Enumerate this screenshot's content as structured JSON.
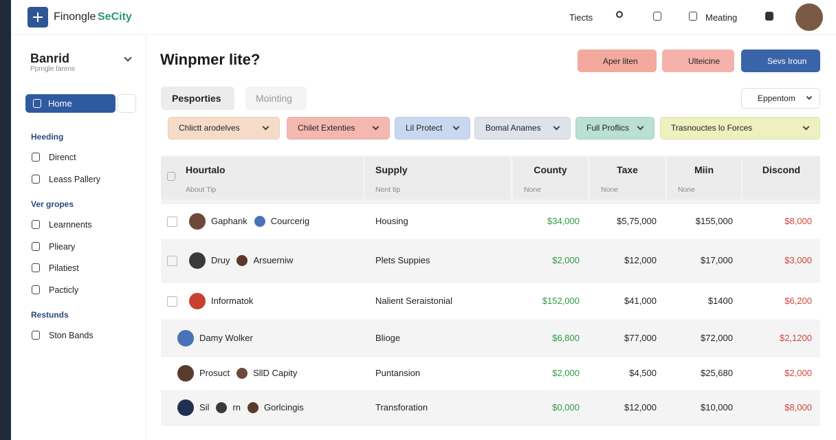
{
  "header": {
    "brand": [
      "Finongle",
      "SeCity"
    ],
    "nav": [
      "Tiects",
      "Meating"
    ]
  },
  "sidebar": {
    "title": "Banrid",
    "subtitle": "Pprngle farens",
    "active": "Home",
    "sections": [
      {
        "heading": "Heeding",
        "items": [
          "Direnct",
          "Leass Pallery"
        ]
      },
      {
        "heading": "Ver gropes",
        "items": [
          "Learnnents",
          "Plieary",
          "Pilatiest",
          "Pacticly"
        ]
      },
      {
        "heading": "Restunds",
        "items": [
          "Ston Bands"
        ]
      }
    ]
  },
  "main": {
    "title": "Winpmer lite?",
    "buttons": [
      "Aper liten",
      "Ulteicine",
      "Sevs Iroun"
    ],
    "tabs": [
      "Pesporties",
      "Mointing"
    ],
    "dropdown": "Eppentom",
    "filters": [
      "Chlictt arodelves",
      "Chilet Extenties",
      "Lil Protect",
      "Bomal Anames",
      "Full Proflics",
      "Trasnouctes lo Forces"
    ],
    "table": {
      "columns": [
        {
          "title": "Hourtalo",
          "sub": "About Tip"
        },
        {
          "title": "Supply",
          "sub": "Nent tip"
        },
        {
          "title": "Countу",
          "sub": "None"
        },
        {
          "title": "Taxe",
          "sub": "None"
        },
        {
          "title": "Miin",
          "sub": "None"
        },
        {
          "title": "Discond"
        }
      ],
      "rows": [
        {
          "names": [
            "Gaphank",
            "Courcerig"
          ],
          "cells": [
            "Housing",
            "$34,000",
            "$5,75,000",
            "$155,000",
            "$8,000"
          ]
        },
        {
          "names": [
            "Druy",
            "Arsuerniw"
          ],
          "cells": [
            "Plets Suppies",
            "$2,000",
            "$12,000",
            "$17,000",
            "$3,000"
          ]
        },
        {
          "names": [
            "Informatok"
          ],
          "cells": [
            "Nalient Seraistonial",
            "$152,000",
            "$41,000",
            "$1400",
            "$6,200"
          ]
        },
        {
          "names": [
            "Damy Wolker"
          ],
          "cells": [
            "Bliоge",
            "$6,800",
            "$77,000",
            "$72,000",
            "$2,1200"
          ]
        },
        {
          "names": [
            "Prosuct",
            "SllD Capity"
          ],
          "cells": [
            "Puntansion",
            "$2,000",
            "$4,500",
            "$25,680",
            "$2,000"
          ]
        },
        {
          "names": [
            "Sil",
            "rn",
            "Gorlcingis"
          ],
          "cells": [
            "Transforation",
            "$0,000",
            "$12,000",
            "$10,000",
            "$8,000"
          ]
        }
      ]
    }
  }
}
